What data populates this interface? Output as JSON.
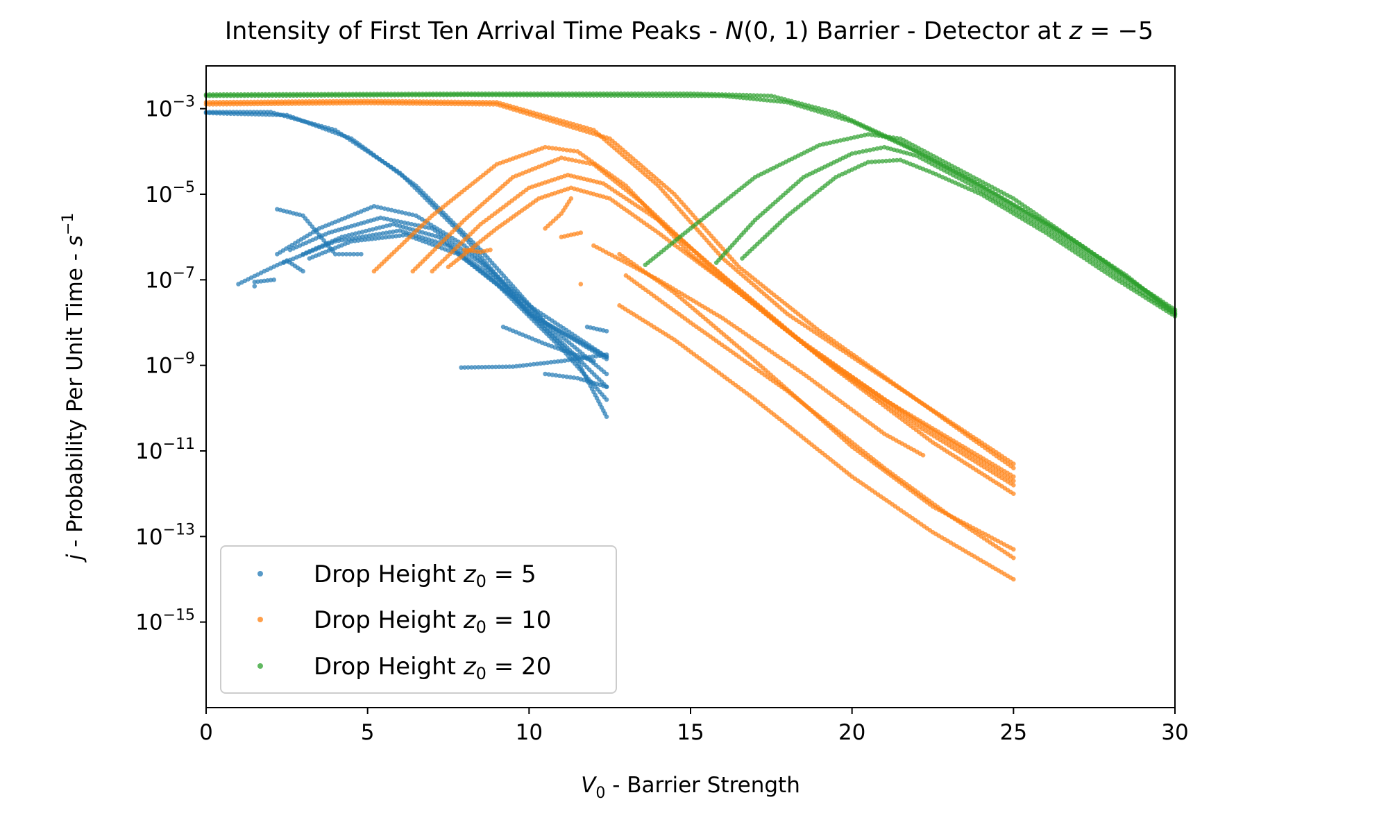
{
  "chart_data": {
    "type": "scatter",
    "title": {
      "pre": "Intensity of First Ten Arrival Time Peaks - ",
      "dist_var": "N",
      "dist_args": "(0, 1)",
      "mid": " Barrier - Detector at ",
      "z_var": "z",
      "z_rel": " = −5"
    },
    "xlabel": {
      "var": "V",
      "sub": "0",
      "rest": " - Barrier Strength"
    },
    "ylabel": {
      "var": "j",
      "mid": " - Probability Per Unit Time - ",
      "unit": "s",
      "sup": "−1"
    },
    "x_range": [
      0,
      30
    ],
    "y_scale": "log",
    "y_range_exp": [
      -17,
      -2
    ],
    "x_ticks": [
      0,
      5,
      10,
      15,
      20,
      25,
      30
    ],
    "x_tick_labels": [
      "0",
      "5",
      "10",
      "15",
      "20",
      "25",
      "30"
    ],
    "y_ticks_exp": [
      -3,
      -5,
      -7,
      -9,
      -11,
      -13,
      -15
    ],
    "y_tick_base": "10",
    "y_tick_exponents": [
      "−3",
      "−5",
      "−7",
      "−9",
      "−11",
      "−13",
      "−15"
    ],
    "grid": false,
    "legend_position": "lower-left",
    "series": [
      {
        "name": {
          "pre": "Drop Height ",
          "var": "z",
          "sub": "0",
          "post": " = 5"
        },
        "color": "#1f77b4",
        "curves": [
          [
            [
              0.0,
              -3.08
            ],
            [
              2.0,
              -3.08
            ],
            [
              4.0,
              -3.5
            ],
            [
              6.0,
              -4.5
            ],
            [
              8.0,
              -6.0
            ],
            [
              10.0,
              -7.8
            ],
            [
              12.4,
              -8.8
            ]
          ],
          [
            [
              0.0,
              -3.1
            ],
            [
              2.5,
              -3.15
            ],
            [
              4.5,
              -3.7
            ],
            [
              6.5,
              -4.8
            ],
            [
              8.5,
              -6.3
            ],
            [
              10.5,
              -8.0
            ],
            [
              12.4,
              -8.85
            ]
          ],
          [
            [
              2.2,
              -6.4
            ],
            [
              3.5,
              -5.8
            ],
            [
              5.2,
              -5.28
            ],
            [
              6.5,
              -5.5
            ],
            [
              8.0,
              -6.2
            ],
            [
              10.0,
              -7.6
            ],
            [
              12.4,
              -8.8
            ]
          ],
          [
            [
              2.6,
              -6.3
            ],
            [
              3.8,
              -5.9
            ],
            [
              5.4,
              -5.55
            ],
            [
              7.0,
              -5.8
            ],
            [
              8.5,
              -6.6
            ],
            [
              10.5,
              -8.0
            ],
            [
              12.4,
              -9.2
            ]
          ],
          [
            [
              3.0,
              -6.4
            ],
            [
              4.2,
              -6.0
            ],
            [
              5.8,
              -5.7
            ],
            [
              7.2,
              -6.0
            ],
            [
              8.8,
              -6.9
            ],
            [
              10.8,
              -8.3
            ],
            [
              12.4,
              -9.5
            ]
          ],
          [
            [
              2.4,
              -6.6
            ],
            [
              4.0,
              -6.1
            ],
            [
              6.0,
              -5.85
            ],
            [
              7.5,
              -6.2
            ],
            [
              9.0,
              -7.1
            ],
            [
              11.0,
              -8.6
            ],
            [
              12.4,
              -9.8
            ]
          ],
          [
            [
              3.2,
              -6.5
            ],
            [
              4.5,
              -6.1
            ],
            [
              6.2,
              -5.95
            ],
            [
              7.8,
              -6.4
            ],
            [
              9.5,
              -7.4
            ],
            [
              11.5,
              -8.9
            ],
            [
              12.4,
              -10.2
            ]
          ],
          [
            [
              2.2,
              -5.35
            ],
            [
              3.0,
              -5.5
            ],
            [
              4.0,
              -6.4
            ],
            [
              4.8,
              -6.4
            ]
          ],
          [
            [
              1.0,
              -7.1
            ],
            [
              1.8,
              -6.8
            ],
            [
              2.5,
              -6.55
            ],
            [
              3.0,
              -6.8
            ]
          ],
          [
            [
              7.9,
              -9.05
            ],
            [
              9.5,
              -9.03
            ],
            [
              11.0,
              -8.9
            ],
            [
              12.4,
              -8.75
            ]
          ],
          [
            [
              9.2,
              -8.1
            ],
            [
              10.5,
              -8.5
            ],
            [
              12.0,
              -8.9
            ]
          ],
          [
            [
              1.5,
              -7.15
            ],
            [
              1.5,
              -7.05
            ],
            [
              2.1,
              -7.0
            ]
          ],
          [
            [
              11.8,
              -8.1
            ],
            [
              12.4,
              -8.2
            ]
          ],
          [
            [
              10.5,
              -9.2
            ],
            [
              11.5,
              -9.3
            ],
            [
              12.4,
              -9.5
            ]
          ]
        ]
      },
      {
        "name": {
          "pre": "Drop Height ",
          "var": "z",
          "sub": "0",
          "post": " = 10"
        },
        "color": "#ff7f0e",
        "curves": [
          [
            [
              0.0,
              -2.85
            ],
            [
              5.0,
              -2.82
            ],
            [
              9.0,
              -2.85
            ],
            [
              12.0,
              -3.5
            ],
            [
              14.0,
              -4.8
            ],
            [
              16.0,
              -6.5
            ],
            [
              18.0,
              -7.8
            ],
            [
              21.0,
              -9.3
            ],
            [
              25.0,
              -11.3
            ]
          ],
          [
            [
              0.0,
              -2.9
            ],
            [
              5.0,
              -2.87
            ],
            [
              9.0,
              -2.9
            ],
            [
              12.5,
              -3.7
            ],
            [
              14.5,
              -5.0
            ],
            [
              16.5,
              -6.7
            ],
            [
              19.0,
              -8.2
            ],
            [
              22.0,
              -9.8
            ],
            [
              25.0,
              -11.4
            ]
          ],
          [
            [
              5.2,
              -6.8
            ],
            [
              7.0,
              -5.5
            ],
            [
              9.0,
              -4.3
            ],
            [
              10.5,
              -3.9
            ],
            [
              11.5,
              -4.0
            ],
            [
              13.0,
              -4.8
            ],
            [
              15.0,
              -6.4
            ],
            [
              18.0,
              -8.2
            ],
            [
              21.0,
              -9.8
            ],
            [
              25.0,
              -11.6
            ]
          ],
          [
            [
              6.4,
              -6.8
            ],
            [
              8.0,
              -5.6
            ],
            [
              9.5,
              -4.6
            ],
            [
              11.0,
              -4.15
            ],
            [
              12.0,
              -4.3
            ],
            [
              13.5,
              -5.2
            ],
            [
              15.5,
              -6.6
            ],
            [
              18.5,
              -8.5
            ],
            [
              22.0,
              -10.3
            ],
            [
              25.0,
              -11.7
            ]
          ],
          [
            [
              7.0,
              -6.8
            ],
            [
              8.5,
              -5.7
            ],
            [
              10.0,
              -4.85
            ],
            [
              11.2,
              -4.55
            ],
            [
              12.3,
              -4.75
            ],
            [
              14.0,
              -5.6
            ],
            [
              16.0,
              -6.9
            ],
            [
              19.0,
              -8.8
            ],
            [
              22.0,
              -10.4
            ],
            [
              25.0,
              -11.8
            ]
          ],
          [
            [
              7.5,
              -6.7
            ],
            [
              9.0,
              -5.8
            ],
            [
              10.3,
              -5.1
            ],
            [
              11.3,
              -4.85
            ],
            [
              12.5,
              -5.1
            ],
            [
              14.0,
              -5.9
            ],
            [
              16.5,
              -7.3
            ],
            [
              19.5,
              -9.1
            ],
            [
              22.5,
              -10.8
            ],
            [
              25.0,
              -12.0
            ]
          ],
          [
            [
              12.8,
              -6.4
            ],
            [
              14.5,
              -7.3
            ],
            [
              17.0,
              -8.9
            ],
            [
              20.0,
              -10.9
            ],
            [
              22.5,
              -12.3
            ],
            [
              25.0,
              -13.3
            ]
          ],
          [
            [
              12.8,
              -7.6
            ],
            [
              14.5,
              -8.4
            ],
            [
              17.0,
              -9.8
            ],
            [
              20.0,
              -11.6
            ],
            [
              22.5,
              -12.9
            ],
            [
              25.0,
              -14.0
            ]
          ],
          [
            [
              13.0,
              -6.9
            ],
            [
              15.0,
              -8.0
            ],
            [
              18.0,
              -9.6
            ],
            [
              21.0,
              -11.4
            ],
            [
              23.0,
              -12.5
            ],
            [
              25.0,
              -13.5
            ]
          ],
          [
            [
              12.0,
              -6.2
            ],
            [
              14.0,
              -7.0
            ],
            [
              16.0,
              -7.9
            ],
            [
              18.5,
              -9.2
            ],
            [
              21.0,
              -10.6
            ],
            [
              22.2,
              -11.1
            ]
          ],
          [
            [
              10.5,
              -5.8
            ],
            [
              11.0,
              -5.45
            ],
            [
              11.3,
              -5.1
            ]
          ],
          [
            [
              11.0,
              -6.0
            ],
            [
              11.6,
              -5.9
            ]
          ],
          [
            [
              11.6,
              -7.1
            ]
          ],
          [
            [
              8.0,
              -6.3
            ],
            [
              8.5,
              -6.35
            ],
            [
              8.8,
              -6.3
            ]
          ]
        ]
      },
      {
        "name": {
          "pre": "Drop Height ",
          "var": "z",
          "sub": "0",
          "post": " = 20"
        },
        "color": "#2ca02c",
        "curves": [
          [
            [
              0.0,
              -2.67
            ],
            [
              8.0,
              -2.65
            ],
            [
              15.0,
              -2.65
            ],
            [
              17.5,
              -2.7
            ],
            [
              19.5,
              -3.1
            ],
            [
              21.5,
              -3.8
            ],
            [
              23.5,
              -4.6
            ],
            [
              26.0,
              -5.7
            ],
            [
              28.0,
              -6.7
            ],
            [
              30.0,
              -7.7
            ]
          ],
          [
            [
              0.0,
              -2.7
            ],
            [
              8.0,
              -2.68
            ],
            [
              16.0,
              -2.7
            ],
            [
              18.0,
              -2.85
            ],
            [
              20.0,
              -3.3
            ],
            [
              22.0,
              -4.0
            ],
            [
              24.0,
              -4.8
            ],
            [
              26.5,
              -5.9
            ],
            [
              28.5,
              -6.9
            ],
            [
              30.0,
              -7.8
            ]
          ],
          [
            [
              13.6,
              -6.65
            ],
            [
              15.0,
              -5.8
            ],
            [
              17.0,
              -4.6
            ],
            [
              19.0,
              -3.85
            ],
            [
              20.5,
              -3.6
            ],
            [
              21.5,
              -3.7
            ],
            [
              23.0,
              -4.3
            ],
            [
              25.0,
              -5.1
            ],
            [
              27.5,
              -6.4
            ],
            [
              30.0,
              -7.75
            ]
          ],
          [
            [
              15.8,
              -6.6
            ],
            [
              17.0,
              -5.6
            ],
            [
              18.5,
              -4.6
            ],
            [
              20.0,
              -4.05
            ],
            [
              21.0,
              -3.9
            ],
            [
              22.0,
              -4.1
            ],
            [
              23.5,
              -4.7
            ],
            [
              26.0,
              -5.8
            ],
            [
              28.0,
              -6.8
            ],
            [
              30.0,
              -7.8
            ]
          ],
          [
            [
              16.6,
              -6.5
            ],
            [
              18.0,
              -5.5
            ],
            [
              19.5,
              -4.6
            ],
            [
              20.5,
              -4.25
            ],
            [
              21.5,
              -4.2
            ],
            [
              22.5,
              -4.5
            ],
            [
              24.0,
              -5.0
            ],
            [
              26.0,
              -5.9
            ],
            [
              28.0,
              -6.9
            ],
            [
              30.0,
              -7.85
            ]
          ]
        ]
      }
    ]
  }
}
